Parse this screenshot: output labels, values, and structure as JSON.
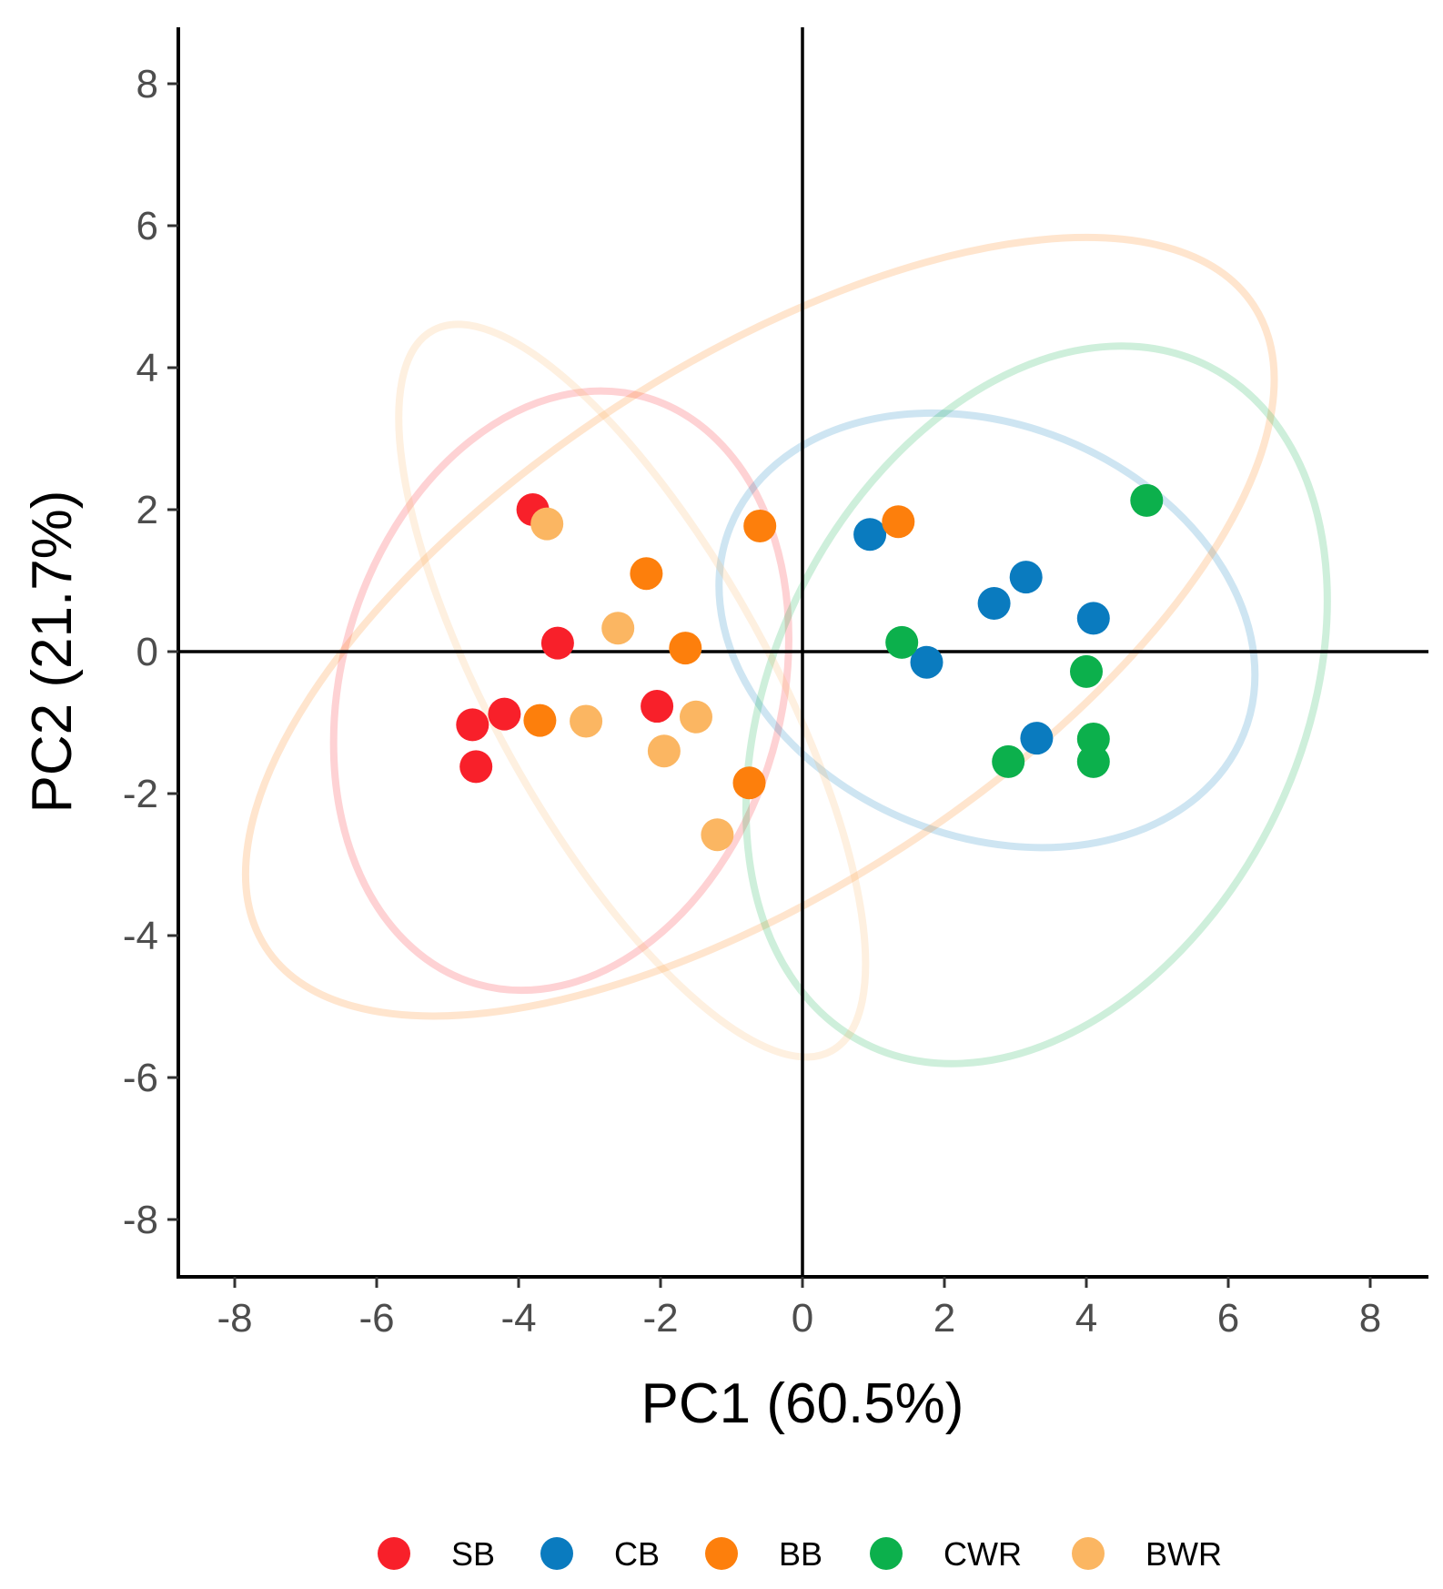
{
  "chart_data": {
    "type": "scatter",
    "title": "",
    "xlabel": "PC1 (60.5%)",
    "ylabel": "PC2 (21.7%)",
    "xlim": [
      -8.8,
      8.8
    ],
    "ylim": [
      -8.8,
      8.8
    ],
    "xticks": [
      "-8",
      "-6",
      "-4",
      "-2",
      "0",
      "2",
      "4",
      "6",
      "8"
    ],
    "yticks": [
      "-8",
      "-6",
      "-4",
      "-2",
      "0",
      "2",
      "4",
      "6",
      "8"
    ],
    "reference_lines": {
      "x": 0,
      "y": 0
    },
    "legend_position": "bottom",
    "series": [
      {
        "name": "SB",
        "color": "#f8202a",
        "points": [
          [
            -3.8,
            2.0
          ],
          [
            -3.45,
            0.12
          ],
          [
            -2.05,
            -0.77
          ],
          [
            -4.2,
            -0.88
          ],
          [
            -4.65,
            -1.03
          ],
          [
            -4.6,
            -1.62
          ]
        ],
        "ellipse": {
          "center": [
            -3.4,
            -0.55
          ],
          "radii": [
            4.3,
            3.1
          ],
          "angle_deg": 74
        }
      },
      {
        "name": "CB",
        "color": "#0a7bbf",
        "points": [
          [
            0.95,
            1.65
          ],
          [
            2.7,
            0.68
          ],
          [
            3.15,
            1.05
          ],
          [
            4.1,
            0.47
          ],
          [
            1.75,
            -0.15
          ],
          [
            3.3,
            -1.22
          ]
        ],
        "ellipse": {
          "center": [
            2.6,
            0.3
          ],
          "radii": [
            3.9,
            2.9
          ],
          "angle_deg": -22
        }
      },
      {
        "name": "BB",
        "color": "#fd7f0c",
        "points": [
          [
            -0.6,
            1.77
          ],
          [
            1.35,
            1.83
          ],
          [
            -2.2,
            1.1
          ],
          [
            -1.65,
            0.05
          ],
          [
            -3.7,
            -0.97
          ],
          [
            -0.75,
            -1.85
          ]
        ],
        "ellipse": {
          "center": [
            -0.6,
            0.35
          ],
          "radii": [
            8.3,
            3.7
          ],
          "angle_deg": 33
        }
      },
      {
        "name": "CWR",
        "color": "#0cb04c",
        "points": [
          [
            4.85,
            2.13
          ],
          [
            1.4,
            0.13
          ],
          [
            4.0,
            -0.28
          ],
          [
            4.1,
            -1.23
          ],
          [
            2.9,
            -1.55
          ],
          [
            4.1,
            -1.55
          ]
        ],
        "ellipse": {
          "center": [
            3.3,
            -0.75
          ],
          "radii": [
            5.35,
            3.7
          ],
          "angle_deg": 63
        }
      },
      {
        "name": "BWR",
        "color": "#fbb662",
        "points": [
          [
            -3.6,
            1.8
          ],
          [
            -2.6,
            0.33
          ],
          [
            -3.05,
            -0.98
          ],
          [
            -1.5,
            -0.92
          ],
          [
            -1.95,
            -1.4
          ],
          [
            -1.2,
            -2.58
          ]
        ],
        "ellipse": {
          "center": [
            -2.4,
            -0.55
          ],
          "radii": [
            5.8,
            1.95
          ],
          "angle_deg": -61
        }
      }
    ]
  }
}
